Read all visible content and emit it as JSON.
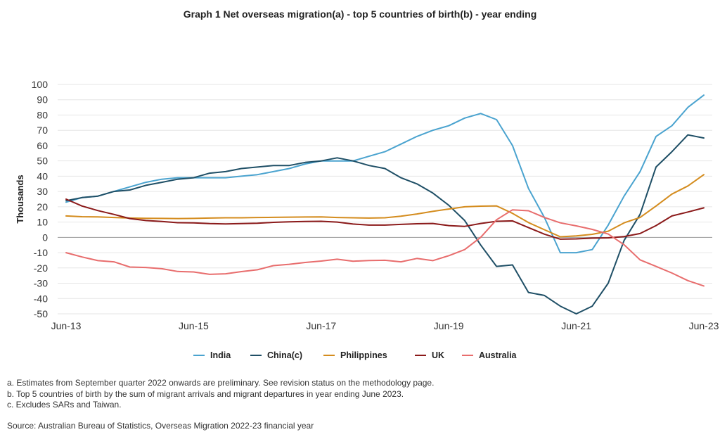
{
  "chart_data": {
    "type": "line",
    "title": "Graph 1 Net overseas migration(a) - top 5 countries of birth(b) - year ending",
    "ylabel": "Thousands",
    "xlabel": "",
    "ylim": [
      -50,
      100
    ],
    "y_ticks": [
      100,
      90,
      80,
      70,
      60,
      50,
      40,
      30,
      20,
      10,
      0,
      -10,
      -20,
      -30,
      -40,
      -50
    ],
    "x_tick_labels": [
      "Jun-13",
      "Jun-15",
      "Jun-17",
      "Jun-19",
      "Jun-21",
      "Jun-23"
    ],
    "x_tick_index": [
      0,
      8,
      16,
      24,
      32,
      40
    ],
    "x": [
      "Jun-13",
      "Sep-13",
      "Dec-13",
      "Mar-14",
      "Jun-14",
      "Sep-14",
      "Dec-14",
      "Mar-15",
      "Jun-15",
      "Sep-15",
      "Dec-15",
      "Mar-16",
      "Jun-16",
      "Sep-16",
      "Dec-16",
      "Mar-17",
      "Jun-17",
      "Sep-17",
      "Dec-17",
      "Mar-18",
      "Jun-18",
      "Sep-18",
      "Dec-18",
      "Mar-19",
      "Jun-19",
      "Sep-19",
      "Dec-19",
      "Mar-20",
      "Jun-20",
      "Sep-20",
      "Dec-20",
      "Mar-21",
      "Jun-21",
      "Sep-21",
      "Dec-21",
      "Mar-22",
      "Jun-22",
      "Sep-22",
      "Dec-22",
      "Mar-23",
      "Jun-23"
    ],
    "grid": true,
    "legend_position": "bottom",
    "series": [
      {
        "name": "India",
        "color": "#4aa3cf",
        "values": [
          23,
          26,
          27,
          30,
          33,
          36,
          38,
          39,
          39,
          39,
          39,
          40,
          41,
          43,
          45,
          48,
          50,
          50,
          50,
          53,
          56,
          61,
          66,
          70,
          73,
          78,
          81,
          77,
          60,
          32,
          13,
          -10,
          -10,
          -8,
          8,
          27,
          43,
          66,
          73,
          85,
          93
        ]
      },
      {
        "name": "China(c)",
        "color": "#1f4f66",
        "values": [
          24,
          26,
          27,
          30,
          31,
          34,
          36,
          38,
          39,
          42,
          43,
          45,
          46,
          47,
          47,
          49,
          50,
          52,
          50,
          47,
          45,
          39,
          35,
          29,
          21,
          11,
          -5,
          -19,
          -18,
          -36,
          -38,
          -45,
          -50,
          -45,
          -30,
          -2,
          15,
          46,
          56,
          67,
          65
        ]
      },
      {
        "name": "Philippines",
        "color": "#d48c1e",
        "values": [
          14,
          13.5,
          13.4,
          13,
          12.6,
          12.5,
          12.4,
          12.3,
          12.4,
          12.6,
          12.8,
          12.8,
          13,
          13.1,
          13.2,
          13.3,
          13.4,
          13,
          12.8,
          12.6,
          12.8,
          13.8,
          15.3,
          17,
          18.5,
          20,
          20.4,
          20.6,
          15.7,
          9.7,
          5,
          0.4,
          1,
          2,
          4,
          9.5,
          13,
          20.5,
          28.3,
          33.6,
          41
        ]
      },
      {
        "name": "UK",
        "color": "#8b1a1a",
        "values": [
          25,
          20.5,
          17.5,
          15,
          12.3,
          11,
          10.4,
          9.6,
          9.5,
          9,
          8.8,
          9,
          9.2,
          9.8,
          10.2,
          10.4,
          10.5,
          10,
          8.7,
          8,
          8,
          8.5,
          8.9,
          9.1,
          7.7,
          7.2,
          9.1,
          10.5,
          10.8,
          6.4,
          2.1,
          -1.2,
          -1,
          -0.5,
          -0.3,
          0.5,
          2.5,
          7.7,
          14,
          16.6,
          19.3
        ]
      },
      {
        "name": "Australia",
        "color": "#e86d6d",
        "values": [
          -10,
          -12.8,
          -15.2,
          -16,
          -19.4,
          -19.7,
          -20.5,
          -22.3,
          -22.6,
          -24.2,
          -23.8,
          -22.4,
          -21.2,
          -18.5,
          -17.6,
          -16.4,
          -15.5,
          -14.3,
          -15.6,
          -15.1,
          -15,
          -16,
          -13.8,
          -15.2,
          -12,
          -8,
          0,
          11.5,
          18,
          17.4,
          13,
          9.5,
          7.5,
          5.2,
          2.2,
          -4.8,
          -14.7,
          -19,
          -23.3,
          -28.3,
          -31.8
        ]
      }
    ]
  },
  "footnotes": [
    "a. Estimates from September quarter 2022 onwards are preliminary. See revision status on the methodology page.",
    "b. Top 5 countries of birth by the sum of migrant arrivals and migrant departures in year ending June 2023.",
    "c. Excludes SARs and Taiwan."
  ],
  "source": "Source: Australian Bureau of Statistics, Overseas Migration 2022-23 financial year"
}
